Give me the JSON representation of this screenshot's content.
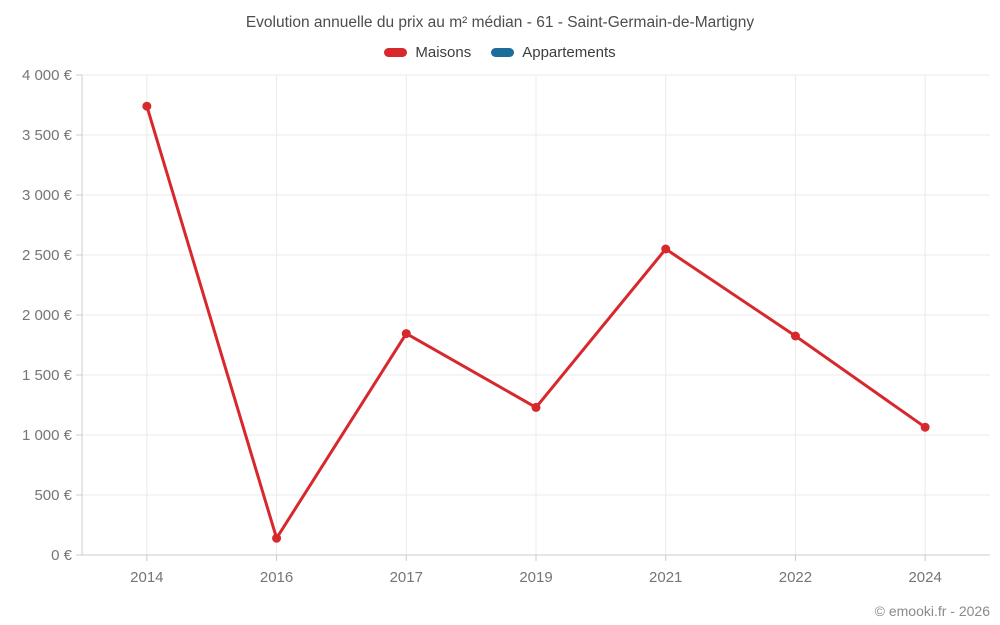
{
  "header": {
    "title": "Evolution annuelle du prix au m² médian - 61 - Saint-Germain-de-Martigny"
  },
  "legend": {
    "items": [
      {
        "label": "Maisons",
        "color": "#d7282d",
        "swatch_icon": "legend-swatch-maisons"
      },
      {
        "label": "Appartements",
        "color": "#1c6d9c",
        "swatch_icon": "legend-swatch-appartements"
      }
    ]
  },
  "chart_data": {
    "type": "line",
    "title": "Evolution annuelle du prix au m² médian - 61 - Saint-Germain-de-Martigny",
    "categories": [
      "2014",
      "2016",
      "2017",
      "2019",
      "2021",
      "2022",
      "2024"
    ],
    "series": [
      {
        "name": "Maisons",
        "color": "#d7282d",
        "values": [
          3740,
          140,
          1845,
          1230,
          2550,
          1825,
          1065
        ]
      },
      {
        "name": "Appartements",
        "color": "#1c6d9c",
        "values": []
      }
    ],
    "xlabel": "",
    "ylabel": "",
    "ylim": [
      0,
      4000
    ],
    "ytick_step": 500,
    "ytick_labels": [
      "0 €",
      "500 €",
      "1 000 €",
      "1 500 €",
      "2 000 €",
      "2 500 €",
      "3 000 €",
      "3 500 €",
      "4 000 €"
    ],
    "grid": true,
    "legend_position": "top",
    "marker_radius": 4.5,
    "line_width": 3
  },
  "footer": {
    "copyright": "© emooki.fr - 2026"
  },
  "colors": {
    "background": "#ffffff",
    "grid": "#ebebeb",
    "axis": "#cccccc",
    "tick_label": "#757575",
    "title": "#4d4d4d",
    "legend_text": "#3d3d3d",
    "copyright": "#8a8a8a"
  }
}
